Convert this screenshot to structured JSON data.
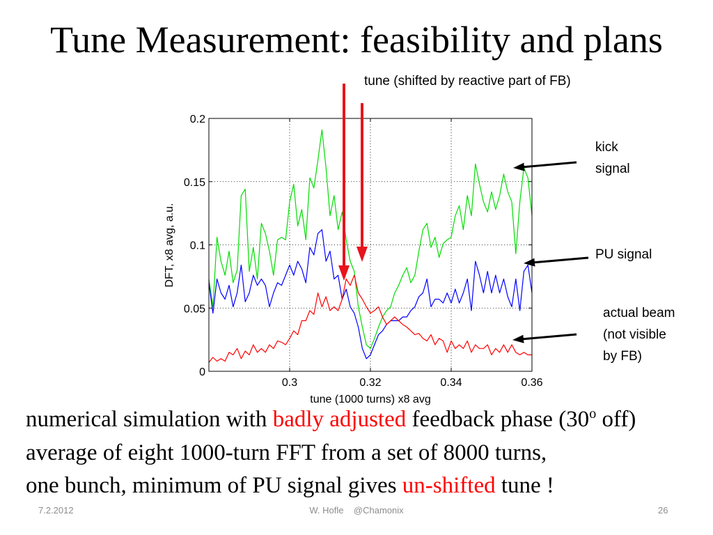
{
  "slide": {
    "title": "Tune Measurement: feasibility and plans",
    "footer": {
      "date": "7.2.2012",
      "center": "W. Hofle    @Chamonix",
      "page": "26"
    }
  },
  "body": {
    "line1": {
      "pre": "numerical simulation with ",
      "highlight": "badly adjusted",
      "mid": " feedback phase (30",
      "sup": "o",
      "post": " off)"
    },
    "line2": "average of eight 1000-turn FFT from a set of 8000 turns,",
    "line3": {
      "pre": "one bunch, minimum of PU signal gives ",
      "highlight": "un-shifted",
      "post": " tune !"
    }
  },
  "colors": {
    "highlight": "#ff0000",
    "arrow_red": "#e8141c",
    "arrow_black": "#000000",
    "footer": "#8c8c8c"
  },
  "chart_data": {
    "type": "line",
    "xlabel": "tune (1000 turns) x8 avg",
    "ylabel": "DFT, x8 avg, a.u.",
    "xlim": [
      0.28,
      0.36
    ],
    "ylim": [
      0,
      0.2
    ],
    "xticks": [
      0.3,
      0.32,
      0.34,
      0.36
    ],
    "xtick_labels": [
      "0.3",
      "0.32",
      "0.34",
      "0.36"
    ],
    "yticks": [
      0,
      0.05,
      0.1,
      0.15,
      0.2
    ],
    "ytick_labels": [
      "0",
      "0.05",
      "0.1",
      "0.15",
      "0.2"
    ],
    "grid": true,
    "annotations": {
      "tune_note": "tune (shifted by reactive part of FB)"
    },
    "x": [
      0.28,
      0.281,
      0.282,
      0.283,
      0.284,
      0.285,
      0.286,
      0.287,
      0.288,
      0.289,
      0.29,
      0.291,
      0.292,
      0.293,
      0.294,
      0.295,
      0.296,
      0.297,
      0.298,
      0.299,
      0.3,
      0.301,
      0.302,
      0.303,
      0.304,
      0.305,
      0.306,
      0.307,
      0.308,
      0.309,
      0.31,
      0.311,
      0.312,
      0.313,
      0.314,
      0.315,
      0.316,
      0.317,
      0.318,
      0.319,
      0.32,
      0.321,
      0.322,
      0.323,
      0.324,
      0.325,
      0.326,
      0.327,
      0.328,
      0.329,
      0.33,
      0.331,
      0.332,
      0.333,
      0.334,
      0.335,
      0.336,
      0.337,
      0.338,
      0.339,
      0.34,
      0.341,
      0.342,
      0.343,
      0.344,
      0.345,
      0.346,
      0.347,
      0.348,
      0.349,
      0.35,
      0.351,
      0.352,
      0.353,
      0.354,
      0.355,
      0.356,
      0.357,
      0.358,
      0.359,
      0.36
    ],
    "series": [
      {
        "label_lines": [
          "kick",
          "signal"
        ],
        "color": "#00dd00",
        "values": [
          0.073,
          0.051,
          0.106,
          0.087,
          0.076,
          0.095,
          0.07,
          0.08,
          0.139,
          0.144,
          0.079,
          0.098,
          0.073,
          0.117,
          0.109,
          0.095,
          0.076,
          0.104,
          0.106,
          0.104,
          0.134,
          0.148,
          0.115,
          0.128,
          0.104,
          0.153,
          0.145,
          0.167,
          0.191,
          0.161,
          0.123,
          0.139,
          0.112,
          0.126,
          0.104,
          0.087,
          0.079,
          0.051,
          0.035,
          0.021,
          0.018,
          0.026,
          0.035,
          0.043,
          0.048,
          0.051,
          0.062,
          0.068,
          0.076,
          0.082,
          0.07,
          0.076,
          0.095,
          0.112,
          0.117,
          0.098,
          0.106,
          0.09,
          0.101,
          0.104,
          0.106,
          0.123,
          0.131,
          0.112,
          0.139,
          0.123,
          0.164,
          0.148,
          0.134,
          0.126,
          0.142,
          0.128,
          0.139,
          0.156,
          0.142,
          0.134,
          0.093,
          0.134,
          0.161,
          0.153,
          0.123
        ]
      },
      {
        "label_lines": [
          "PU signal"
        ],
        "color": "#0000ff",
        "values": [
          0.07,
          0.046,
          0.073,
          0.062,
          0.057,
          0.068,
          0.051,
          0.062,
          0.084,
          0.055,
          0.062,
          0.076,
          0.068,
          0.073,
          0.068,
          0.051,
          0.062,
          0.07,
          0.068,
          0.076,
          0.084,
          0.076,
          0.087,
          0.081,
          0.07,
          0.098,
          0.092,
          0.109,
          0.112,
          0.087,
          0.095,
          0.073,
          0.076,
          0.057,
          0.065,
          0.051,
          0.046,
          0.035,
          0.018,
          0.01,
          0.013,
          0.021,
          0.029,
          0.032,
          0.037,
          0.04,
          0.04,
          0.04,
          0.043,
          0.043,
          0.048,
          0.051,
          0.059,
          0.062,
          0.073,
          0.051,
          0.057,
          0.057,
          0.054,
          0.062,
          0.054,
          0.065,
          0.054,
          0.062,
          0.073,
          0.048,
          0.087,
          0.076,
          0.062,
          0.079,
          0.062,
          0.076,
          0.062,
          0.073,
          0.059,
          0.051,
          0.073,
          0.048,
          0.079,
          0.084,
          0.062
        ]
      },
      {
        "label_lines": [
          "actual beam",
          "(not visible",
          "by FB)"
        ],
        "color": "#ff0000",
        "values": [
          0.007,
          0.011,
          0.008,
          0.01,
          0.008,
          0.015,
          0.013,
          0.018,
          0.01,
          0.016,
          0.013,
          0.021,
          0.015,
          0.018,
          0.015,
          0.021,
          0.018,
          0.024,
          0.023,
          0.021,
          0.026,
          0.032,
          0.029,
          0.04,
          0.04,
          0.048,
          0.045,
          0.062,
          0.051,
          0.059,
          0.048,
          0.051,
          0.048,
          0.057,
          0.073,
          0.068,
          0.076,
          0.062,
          0.057,
          0.051,
          0.046,
          0.048,
          0.051,
          0.043,
          0.037,
          0.04,
          0.043,
          0.04,
          0.037,
          0.035,
          0.032,
          0.029,
          0.03,
          0.026,
          0.024,
          0.029,
          0.021,
          0.026,
          0.024,
          0.015,
          0.024,
          0.018,
          0.021,
          0.018,
          0.024,
          0.015,
          0.021,
          0.018,
          0.018,
          0.021,
          0.013,
          0.018,
          0.015,
          0.021,
          0.015,
          0.021,
          0.015,
          0.013,
          0.015,
          0.013,
          0.013
        ]
      }
    ]
  }
}
